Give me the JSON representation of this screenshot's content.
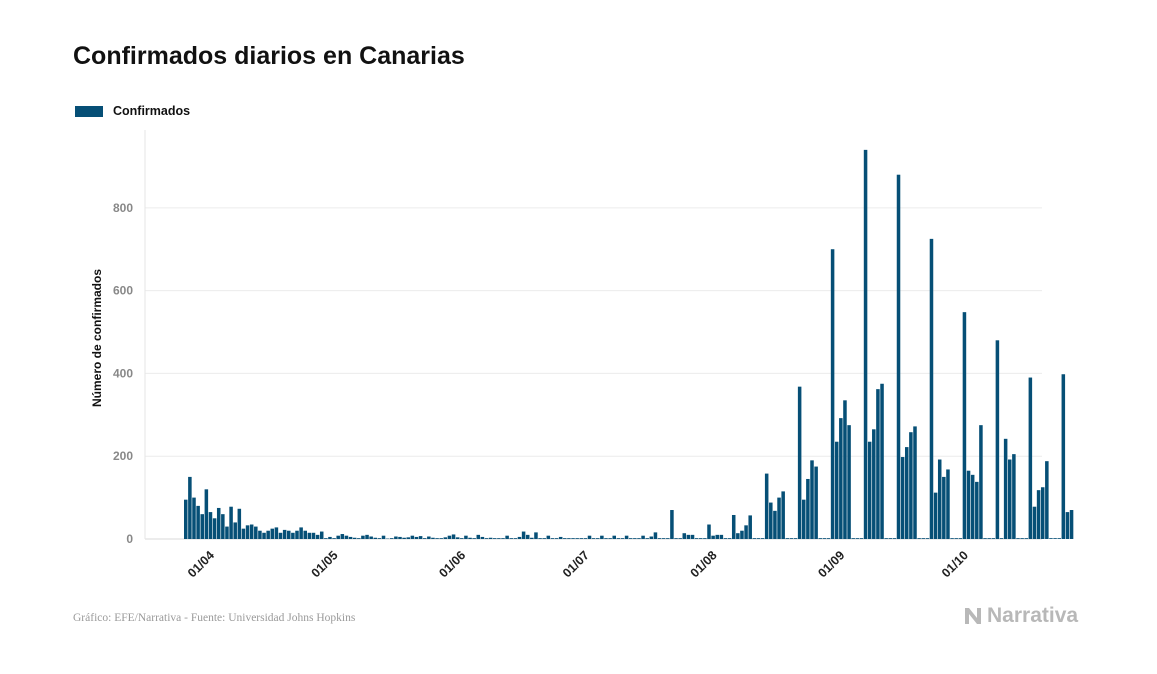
{
  "title": "Confirmados diarios en Canarias",
  "legend": {
    "label": "Confirmados",
    "color": "#064f76"
  },
  "footer": {
    "source": "Gráfico: EFE/Narrativa - Fuente: Universidad Johns Hopkins"
  },
  "brand": {
    "name": "Narrativa",
    "icon": "narrativa-logo-icon"
  },
  "chart_data": {
    "type": "bar",
    "title": "Confirmados diarios en Canarias",
    "xlabel": "",
    "ylabel": "Número de confirmados",
    "ylim": [
      0,
      950
    ],
    "yticks": [
      0,
      200,
      400,
      600,
      800
    ],
    "grid": true,
    "legend_position": "top-left",
    "x_start": "2020-03-25",
    "x_ticks": [
      {
        "label": "01/04",
        "date": "2020-04-01"
      },
      {
        "label": "01/05",
        "date": "2020-05-01"
      },
      {
        "label": "01/06",
        "date": "2020-06-01"
      },
      {
        "label": "01/07",
        "date": "2020-07-01"
      },
      {
        "label": "01/08",
        "date": "2020-08-01"
      },
      {
        "label": "01/09",
        "date": "2020-09-01"
      },
      {
        "label": "01/10",
        "date": "2020-10-01"
      }
    ],
    "series": [
      {
        "name": "Confirmados",
        "color": "#064f76",
        "values": [
          95,
          150,
          100,
          80,
          60,
          120,
          65,
          50,
          75,
          60,
          30,
          78,
          40,
          73,
          25,
          33,
          35,
          30,
          20,
          15,
          20,
          25,
          28,
          15,
          22,
          20,
          15,
          20,
          28,
          20,
          15,
          15,
          10,
          18,
          2,
          5,
          2,
          8,
          12,
          8,
          5,
          3,
          2,
          8,
          10,
          6,
          3,
          2,
          8,
          1,
          2,
          6,
          5,
          3,
          4,
          8,
          5,
          7,
          2,
          6,
          3,
          2,
          2,
          4,
          8,
          11,
          4,
          2,
          8,
          3,
          2,
          10,
          5,
          2,
          3,
          2,
          2,
          2,
          8,
          2,
          2,
          5,
          18,
          10,
          3,
          16,
          2,
          2,
          8,
          2,
          2,
          5,
          2,
          2,
          2,
          2,
          2,
          2,
          8,
          2,
          2,
          8,
          2,
          2,
          8,
          2,
          2,
          8,
          2,
          2,
          2,
          8,
          2,
          6,
          16,
          2,
          2,
          2,
          70,
          2,
          2,
          14,
          10,
          10,
          2,
          2,
          2,
          35,
          8,
          10,
          10,
          2,
          2,
          58,
          14,
          20,
          33,
          57,
          2,
          2,
          2,
          158,
          88,
          68,
          100,
          115,
          2,
          2,
          2,
          368,
          95,
          145,
          190,
          175,
          2,
          2,
          2,
          700,
          235,
          292,
          335,
          275,
          2,
          2,
          2,
          940,
          235,
          265,
          362,
          375,
          2,
          2,
          2,
          880,
          198,
          222,
          258,
          272,
          2,
          2,
          2,
          725,
          112,
          192,
          150,
          168,
          2,
          2,
          2,
          548,
          165,
          155,
          138,
          275,
          2,
          2,
          2,
          480,
          2,
          242,
          192,
          205,
          2,
          2,
          2,
          390,
          78,
          118,
          125,
          188,
          2,
          2,
          2,
          398,
          65,
          70
        ]
      }
    ]
  }
}
